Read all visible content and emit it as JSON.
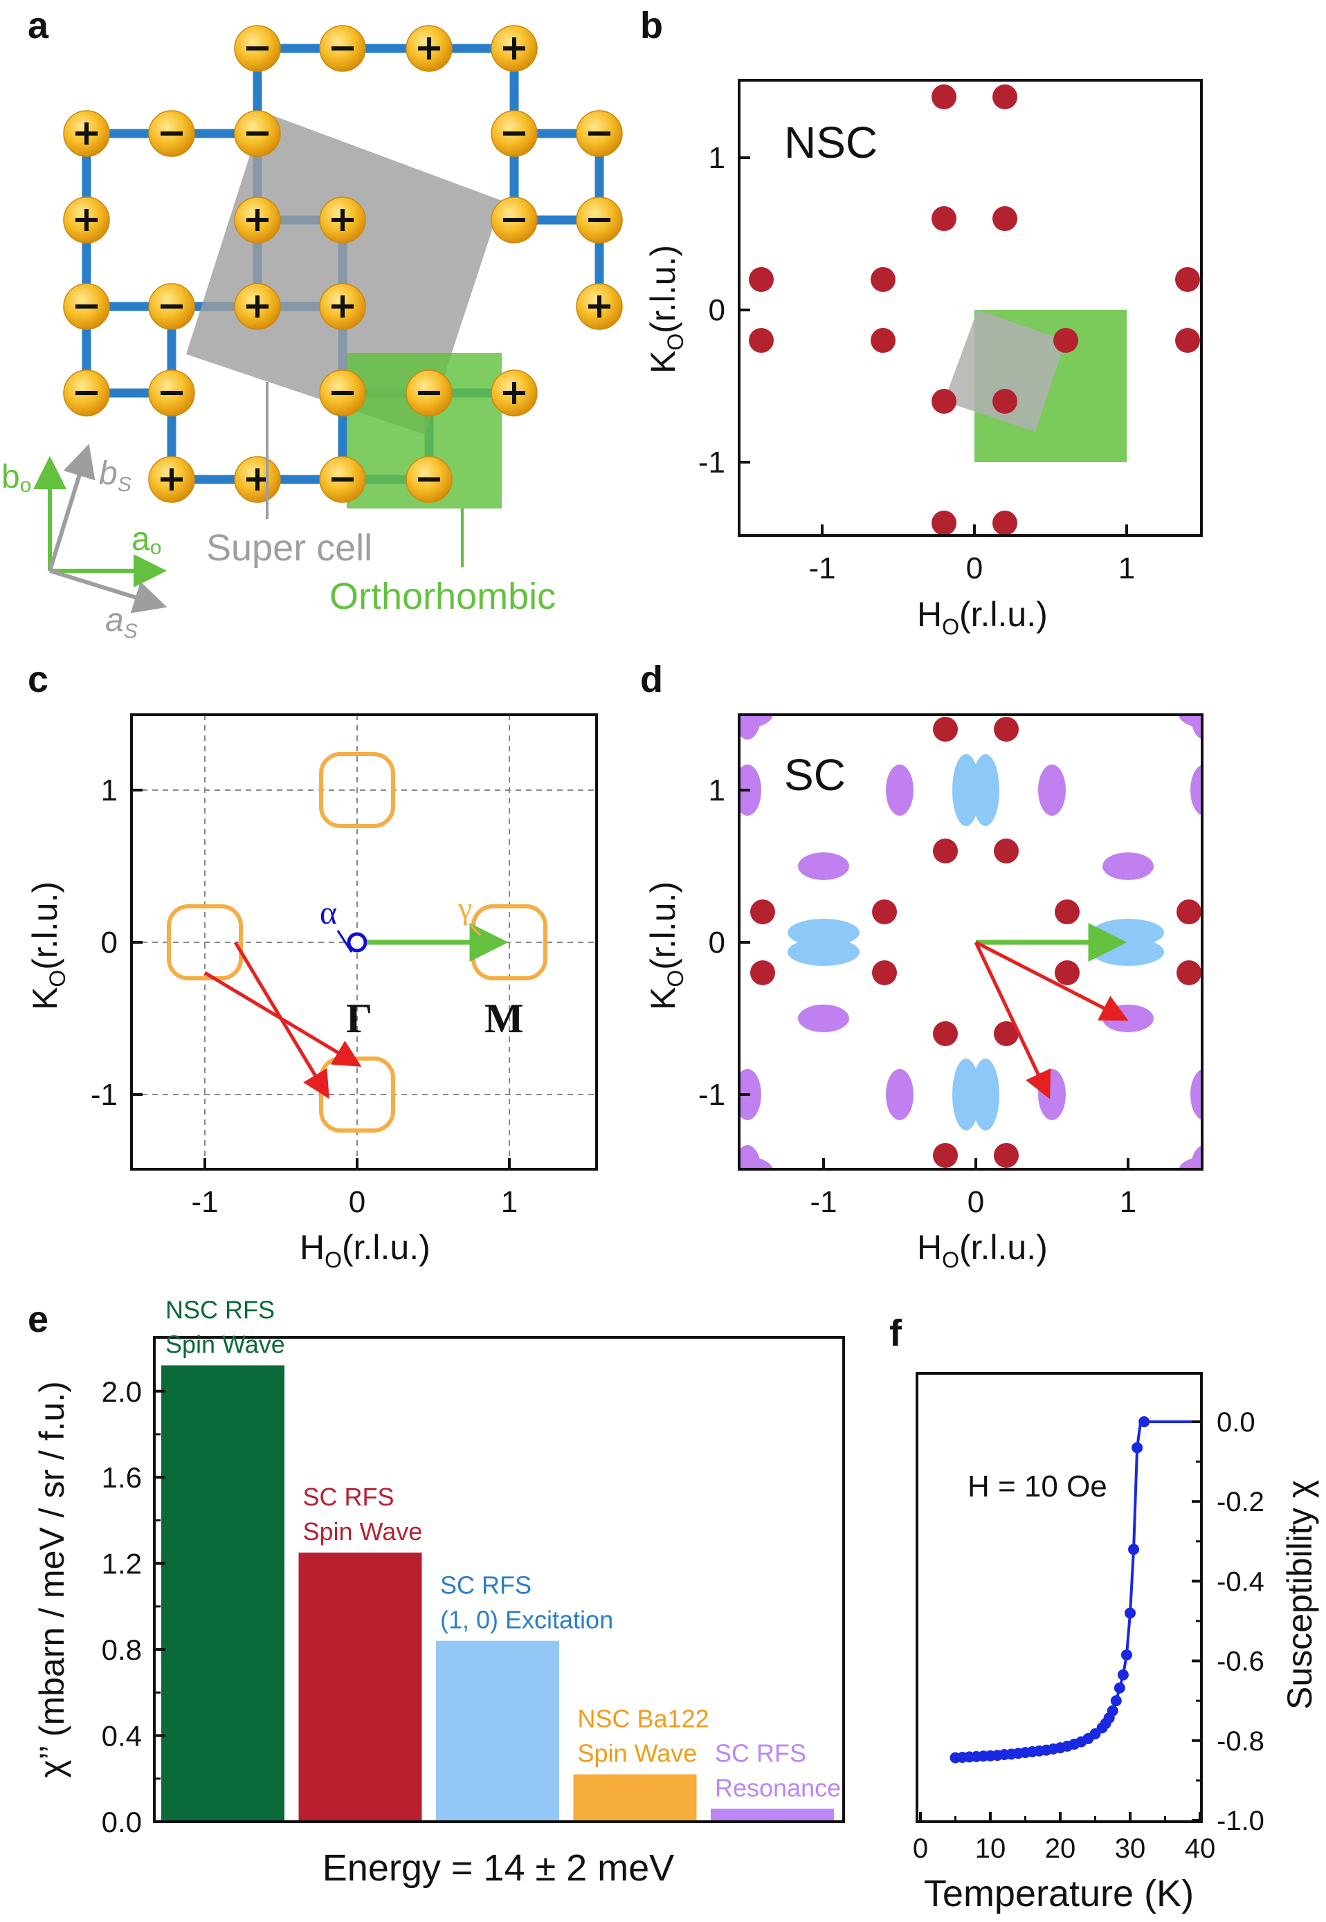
{
  "panel_labels": {
    "a": "a",
    "b": "b",
    "c": "c",
    "d": "d",
    "e": "e",
    "f": "f"
  },
  "colors": {
    "spin_site": "#f2b418",
    "bond": "#2a7ec8",
    "supercell": "#9e9e9e",
    "orthorhombic": "#63c13f",
    "nsc_peak": "#b3222e",
    "resonance": "#c080f0",
    "excitation": "#8cc8f8",
    "fermi_pocket": "#f5ad45",
    "alpha": "#1010d0",
    "arrow_red": "#e62020",
    "arrow_green": "#63c13f",
    "bar_nsc_rfs": "#0b6a3a",
    "bar_sc_rfs": "#ba1f30",
    "bar_sc_excitation": "#93c7f5",
    "bar_ba122": "#f6ad3c",
    "bar_resonance": "#bb86f5",
    "susceptibility_line": "#1a28e0"
  },
  "panel_a": {
    "site_signs": [
      [
        "-",
        "-",
        "+",
        "+"
      ],
      [
        "+",
        "-",
        "-",
        "-",
        "-"
      ],
      [
        "+",
        "+",
        "+",
        "-",
        "-"
      ],
      [
        "-",
        "-",
        "+",
        "+",
        "+"
      ],
      [
        "-",
        "-",
        "-",
        "-",
        "+"
      ],
      [
        "+",
        "+",
        "-",
        "-"
      ]
    ],
    "labels": {
      "super_cell": "Super cell",
      "orthorhombic": "Orthorhombic",
      "b_o": "b",
      "b_o_sub": "o",
      "a_o": "a",
      "a_o_sub": "o",
      "b_s": "b",
      "b_s_sub": "S",
      "a_s": "a",
      "a_s_sub": "S"
    }
  },
  "panel_b": {
    "title": "NSC",
    "xlabel": "H",
    "xlabel_sub": "O",
    "xlabel_unit": "(r.l.u.)",
    "ylabel": "K",
    "ylabel_sub": "O",
    "ylabel_unit": "(r.l.u.)",
    "xticks": [
      "-1",
      "0",
      "1"
    ],
    "yticks": [
      "1",
      "0",
      "-1"
    ]
  },
  "panel_c": {
    "xlabel": "H",
    "xlabel_sub": "O",
    "xlabel_unit": "(r.l.u.)",
    "ylabel": "K",
    "ylabel_sub": "O",
    "ylabel_unit": "(r.l.u.)",
    "xticks": [
      "-1",
      "0",
      "1"
    ],
    "yticks": [
      "1",
      "0",
      "-1"
    ],
    "alpha": "α",
    "gamma": "γ",
    "gamma_point": "Γ",
    "m_point": "M"
  },
  "panel_d": {
    "title": "SC",
    "xlabel": "H",
    "xlabel_sub": "O",
    "xlabel_unit": "(r.l.u.)",
    "ylabel": "K",
    "ylabel_sub": "O",
    "ylabel_unit": "(r.l.u.)",
    "xticks": [
      "-1",
      "0",
      "1"
    ],
    "yticks": [
      "1",
      "0",
      "-1"
    ]
  },
  "panel_e": {
    "ylabel": "χ’’ (mbarn / meV / sr / f.u.)",
    "xlabel": "Energy = 14 ± 2 meV",
    "yticks": [
      "0.0",
      "0.4",
      "0.8",
      "1.2",
      "1.6",
      "2.0"
    ],
    "bar_labels": [
      [
        "NSC RFS",
        "Spin Wave"
      ],
      [
        "SC RFS",
        "Spin Wave"
      ],
      [
        "SC RFS",
        "(1, 0) Excitation"
      ],
      [
        "NSC Ba122",
        "Spin Wave"
      ],
      [
        "SC RFS",
        "Resonance"
      ]
    ]
  },
  "panel_f": {
    "annotation": "H = 10 Oe",
    "xlabel": "Temperature (K)",
    "ylabel": "Susceptibility χ",
    "xticks": [
      "0",
      "10",
      "20",
      "30",
      "40"
    ],
    "yticks": [
      "0.0",
      "-0.2",
      "-0.4",
      "-0.6",
      "-0.8",
      "-1.0"
    ]
  },
  "chart_data": [
    {
      "type": "scatter",
      "panel": "b",
      "title": "NSC",
      "xlim": [
        -1.4,
        1.4
      ],
      "ylim": [
        -1.45,
        1.45
      ],
      "peaks": [
        [
          -0.2,
          1.4
        ],
        [
          0.2,
          1.4
        ],
        [
          -0.2,
          0.6
        ],
        [
          0.2,
          0.6
        ],
        [
          -1.4,
          0.2
        ],
        [
          -0.6,
          0.2
        ],
        [
          1.4,
          0.2
        ],
        [
          -1.4,
          -0.2
        ],
        [
          -0.6,
          -0.2
        ],
        [
          0.6,
          -0.2
        ],
        [
          1.4,
          -0.2
        ],
        [
          -0.2,
          -0.6
        ],
        [
          0.2,
          -0.6
        ],
        [
          -0.2,
          -1.4
        ],
        [
          0.2,
          -1.4
        ]
      ],
      "orthorhombic_cell": [
        [
          0,
          0
        ],
        [
          1,
          0
        ],
        [
          1,
          -1
        ],
        [
          0,
          -1
        ]
      ],
      "super_cell": [
        [
          0.02,
          0.0
        ],
        [
          0.6,
          -0.2
        ],
        [
          0.4,
          -0.8
        ],
        [
          -0.2,
          -0.6
        ]
      ]
    },
    {
      "type": "scatter",
      "panel": "c",
      "xlim": [
        -1.4,
        1.4
      ],
      "ylim": [
        -1.45,
        1.45
      ],
      "grid": true,
      "hole_pocket_alpha": [
        0,
        0
      ],
      "electron_pockets_gamma": [
        [
          1,
          0
        ],
        [
          -1,
          0
        ],
        [
          0,
          1
        ],
        [
          0,
          -1
        ]
      ],
      "green_arrow": [
        [
          0,
          0
        ],
        [
          1,
          0
        ]
      ],
      "red_arrows": [
        [
          [
            -1,
            -0.2
          ],
          [
            0,
            -0.8
          ]
        ],
        [
          [
            -0.8,
            0.0
          ],
          [
            -0.2,
            -1.0
          ]
        ]
      ]
    },
    {
      "type": "scatter",
      "panel": "d",
      "title": "SC",
      "xlim": [
        -1.4,
        1.4
      ],
      "ylim": [
        -1.45,
        1.45
      ],
      "nsc_peaks": [
        [
          -0.2,
          1.4
        ],
        [
          0.2,
          1.4
        ],
        [
          -0.2,
          0.6
        ],
        [
          0.2,
          0.6
        ],
        [
          -1.4,
          0.2
        ],
        [
          -0.6,
          0.2
        ],
        [
          0.6,
          0.2
        ],
        [
          1.4,
          0.2
        ],
        [
          -1.4,
          -0.2
        ],
        [
          -0.6,
          -0.2
        ],
        [
          0.6,
          -0.2
        ],
        [
          1.4,
          -0.2
        ],
        [
          -0.2,
          -0.6
        ],
        [
          0.2,
          -0.6
        ],
        [
          -0.2,
          -1.4
        ],
        [
          0.2,
          -1.4
        ]
      ],
      "excitation_10": [
        [
          0,
          1
        ],
        [
          0,
          -1
        ],
        [
          1,
          0
        ],
        [
          -1,
          0
        ]
      ],
      "resonance_vertical": [
        [
          -1.5,
          1
        ],
        [
          -0.5,
          1
        ],
        [
          0.5,
          1
        ],
        [
          1.5,
          1
        ],
        [
          -1.5,
          -1
        ],
        [
          -0.5,
          -1
        ],
        [
          0.5,
          -1
        ],
        [
          1.5,
          -1
        ],
        [
          -1.5,
          1.5
        ],
        [
          1.5,
          1.5
        ],
        [
          -1.5,
          -1.5
        ],
        [
          1.5,
          -1.5
        ]
      ],
      "resonance_horizontal": [
        [
          -1,
          0.5
        ],
        [
          1,
          0.5
        ],
        [
          -1,
          -0.5
        ],
        [
          1,
          -0.5
        ],
        [
          -1.5,
          1.5
        ],
        [
          1.5,
          1.5
        ],
        [
          -1.5,
          -1.5
        ],
        [
          1.5,
          -1.5
        ]
      ],
      "green_arrow": [
        [
          0,
          0
        ],
        [
          1,
          0
        ]
      ],
      "red_arrows": [
        [
          [
            0,
            0
          ],
          [
            1,
            -0.5
          ]
        ],
        [
          [
            0,
            0
          ],
          [
            0.5,
            -1
          ]
        ]
      ]
    },
    {
      "type": "bar",
      "panel": "e",
      "ylabel": "χ’’ (mbarn / meV / sr / f.u.)",
      "xlabel": "Energy = 14 ± 2 meV",
      "ylim": [
        0,
        2.25
      ],
      "categories": [
        "NSC RFS Spin Wave",
        "SC RFS Spin Wave",
        "SC RFS (1, 0) Excitation",
        "NSC Ba122 Spin Wave",
        "SC RFS Resonance"
      ],
      "values": [
        2.12,
        1.25,
        0.84,
        0.22,
        0.06
      ]
    },
    {
      "type": "line",
      "panel": "f",
      "xlabel": "Temperature (K)",
      "ylabel": "Susceptibility χ",
      "xlim": [
        0,
        40
      ],
      "ylim": [
        -1.0,
        0.05
      ],
      "annotation": "H = 10 Oe",
      "x": [
        5,
        6,
        7,
        8,
        9,
        10,
        11,
        12,
        13,
        14,
        15,
        16,
        17,
        18,
        19,
        20,
        21,
        22,
        23,
        24,
        25,
        26,
        26.5,
        27,
        27.5,
        28,
        28.5,
        29,
        29.5,
        30,
        30.5,
        31,
        31.5,
        32,
        32.5,
        33,
        34,
        35,
        36,
        37,
        38,
        39
      ],
      "y": [
        -0.843,
        -0.842,
        -0.841,
        -0.84,
        -0.839,
        -0.838,
        -0.837,
        -0.835,
        -0.834,
        -0.832,
        -0.83,
        -0.828,
        -0.826,
        -0.824,
        -0.821,
        -0.818,
        -0.814,
        -0.809,
        -0.803,
        -0.795,
        -0.783,
        -0.768,
        -0.757,
        -0.743,
        -0.725,
        -0.7,
        -0.668,
        -0.635,
        -0.585,
        -0.48,
        -0.32,
        -0.065,
        0.0,
        0.0,
        0.0,
        0.0,
        0.0,
        0.0,
        0.0,
        0.0,
        0.0,
        0.0
      ],
      "markers_x": [
        5,
        6,
        7,
        8,
        9,
        10,
        11,
        12,
        13,
        14,
        15,
        16,
        17,
        18,
        19,
        20,
        21,
        22,
        23,
        24,
        25,
        26,
        26.5,
        27,
        27.5,
        28,
        28.5,
        29,
        29.5,
        30,
        30.5,
        31,
        32
      ]
    }
  ]
}
